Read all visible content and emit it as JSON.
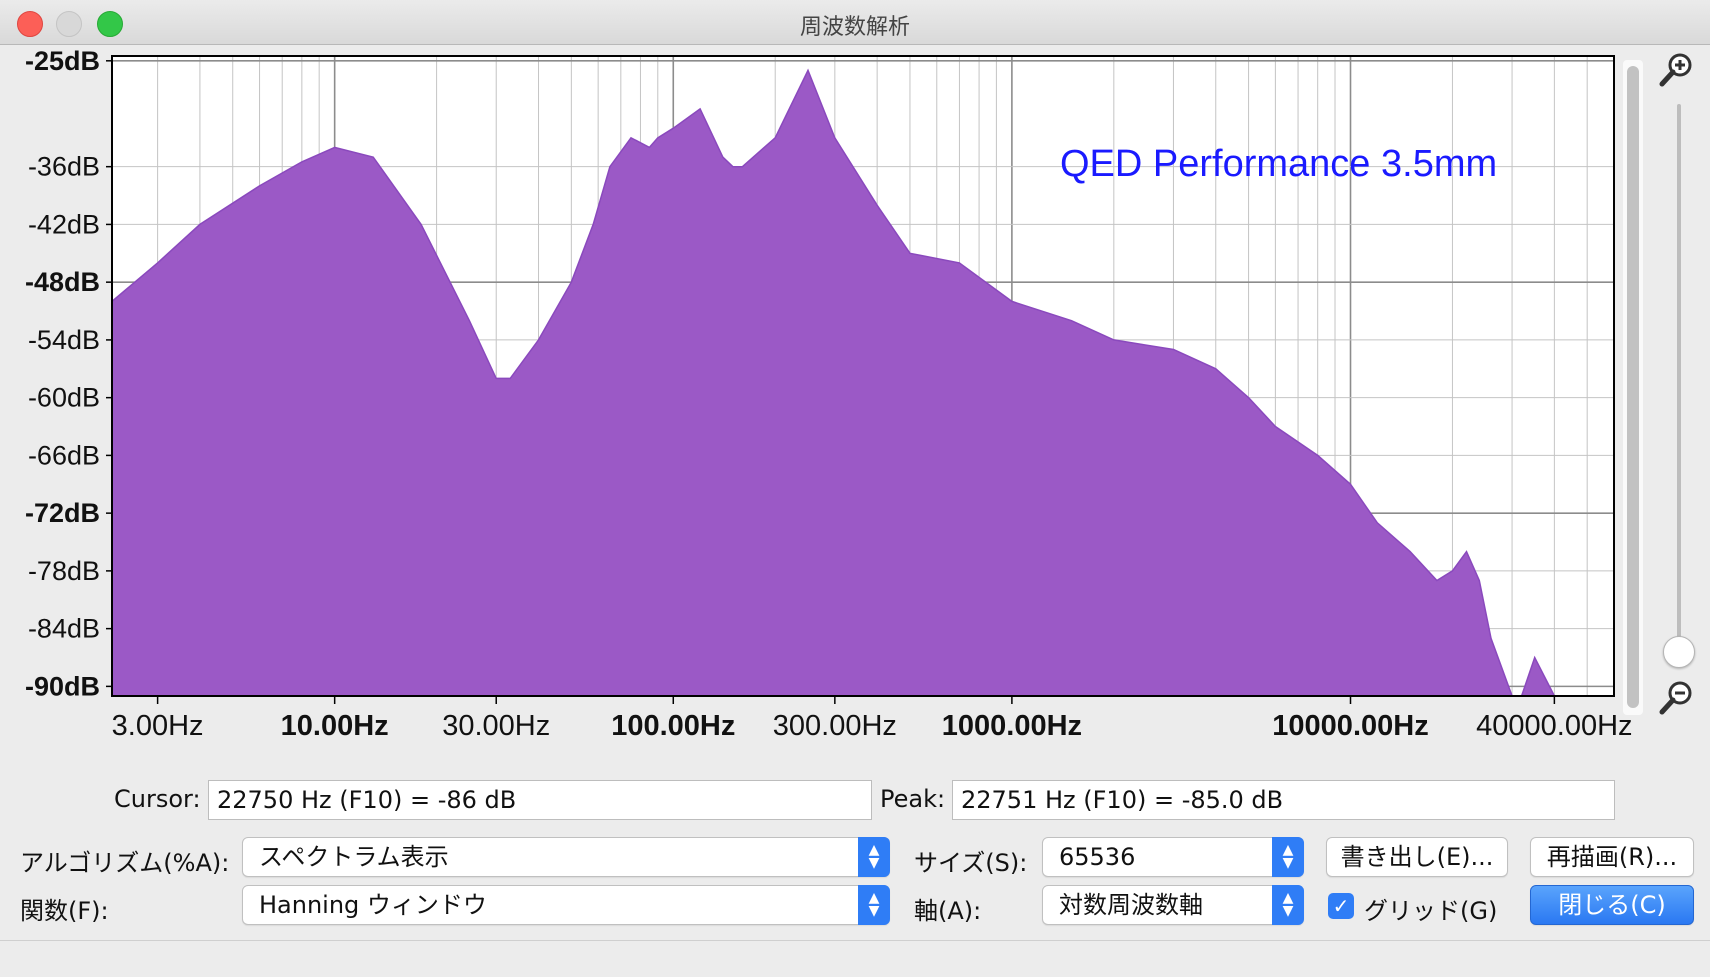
{
  "window": {
    "title": "周波数解析"
  },
  "chart_data": {
    "type": "area",
    "annotation": "QED Performance 3.5mm",
    "x_scale": "log",
    "xlim": [
      2.2,
      60000
    ],
    "ylim": [
      -91,
      -24.5
    ],
    "grid": true,
    "y_ticks": [
      {
        "value": -25,
        "label": "-25dB",
        "bold": true
      },
      {
        "value": -36,
        "label": "-36dB",
        "bold": false
      },
      {
        "value": -42,
        "label": "-42dB",
        "bold": false
      },
      {
        "value": -48,
        "label": "-48dB",
        "bold": true
      },
      {
        "value": -54,
        "label": "-54dB",
        "bold": false
      },
      {
        "value": -60,
        "label": "-60dB",
        "bold": false
      },
      {
        "value": -66,
        "label": "-66dB",
        "bold": false
      },
      {
        "value": -72,
        "label": "-72dB",
        "bold": true
      },
      {
        "value": -78,
        "label": "-78dB",
        "bold": false
      },
      {
        "value": -84,
        "label": "-84dB",
        "bold": false
      },
      {
        "value": -90,
        "label": "-90dB",
        "bold": true
      }
    ],
    "x_ticks": [
      {
        "value": 3,
        "label": "3.00Hz",
        "bold": false
      },
      {
        "value": 10,
        "label": "10.00Hz",
        "bold": true
      },
      {
        "value": 30,
        "label": "30.00Hz",
        "bold": false
      },
      {
        "value": 100,
        "label": "100.00Hz",
        "bold": true
      },
      {
        "value": 300,
        "label": "300.00Hz",
        "bold": false
      },
      {
        "value": 1000,
        "label": "1000.00Hz",
        "bold": true
      },
      {
        "value": 10000,
        "label": "10000.00Hz",
        "bold": true
      },
      {
        "value": 40000,
        "label": "40000.00Hz",
        "bold": false
      }
    ],
    "x": [
      2.2,
      3,
      4,
      6,
      8,
      10,
      13,
      18,
      25,
      30,
      33,
      40,
      50,
      58,
      65,
      75,
      85,
      90,
      100,
      120,
      140,
      150,
      160,
      200,
      250,
      300,
      400,
      500,
      700,
      1000,
      1500,
      2000,
      3000,
      4000,
      5000,
      6000,
      8000,
      10000,
      12000,
      15000,
      18000,
      20000,
      22000,
      24000,
      26000,
      30000,
      32000,
      35000,
      40000,
      60000
    ],
    "y": [
      -50,
      -46,
      -42,
      -38,
      -35.5,
      -34,
      -35,
      -42,
      -52,
      -58,
      -58,
      -54,
      -48,
      -42,
      -36,
      -33,
      -34,
      -33,
      -32,
      -30,
      -35,
      -36,
      -36,
      -33,
      -26,
      -33,
      -40,
      -45,
      -46,
      -50,
      -52,
      -54,
      -55,
      -57,
      -60,
      -63,
      -66,
      -69,
      -73,
      -76,
      -79,
      -78,
      -76,
      -79,
      -85,
      -93,
      -93,
      -87,
      -93,
      -93
    ],
    "color": "#9b59c6"
  },
  "readouts": {
    "cursor_label": "Cursor:",
    "cursor_value": "22750 Hz (F10) = -86 dB",
    "peak_label": "Peak:",
    "peak_value": "22751 Hz (F10) = -85.0 dB"
  },
  "controls": {
    "algorithm_label": "アルゴリズム(%A):",
    "algorithm_value": "スペクトラム表示",
    "size_label": "サイズ(S):",
    "size_value": "65536",
    "function_label": "関数(F):",
    "function_value": "Hanning ウィンドウ",
    "axis_label": "軸(A):",
    "axis_value": "対数周波数軸",
    "export_button": "書き出し(E)...",
    "replot_button": "再描画(R)...",
    "grid_checkbox": "グリッド(G)",
    "grid_checked": true,
    "close_button": "閉じる(C)"
  }
}
